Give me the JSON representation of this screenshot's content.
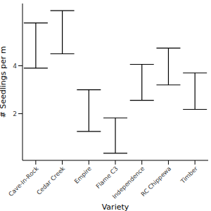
{
  "chart_data": {
    "type": "errorbar",
    "x_label": "Variety",
    "y_label": "# Seedlings per m",
    "categories": [
      "Cave-In-Rock",
      "Cedar Creek",
      "Empire",
      "Flame C3",
      "Independence",
      "RC Chippewa",
      "Timber"
    ],
    "lower": [
      3.9,
      4.5,
      1.26,
      0.35,
      2.56,
      3.2,
      2.18
    ],
    "upper": [
      5.79,
      6.3,
      3.0,
      1.82,
      4.06,
      4.74,
      3.7
    ],
    "color": "#000000",
    "ylim": [
      0.05,
      6.6
    ],
    "yticks": [
      2,
      4
    ],
    "grid": false
  }
}
